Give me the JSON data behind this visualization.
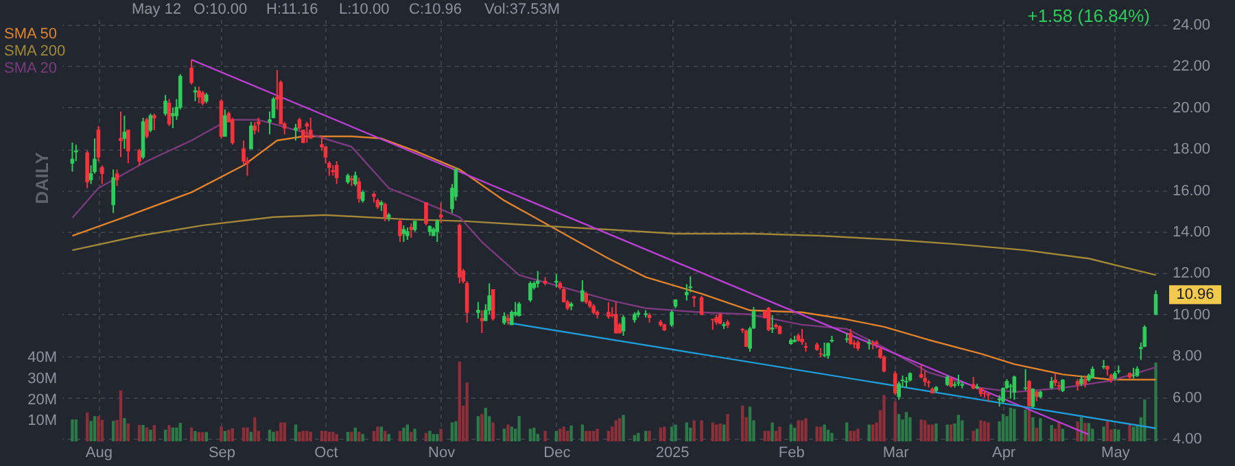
{
  "chart_data": {
    "type": "candlestick",
    "x": [
      "2024-07-25",
      "2024-07-26",
      "2024-07-29",
      "2024-07-30",
      "2024-07-31",
      "2024-08-01",
      "2024-08-02",
      "2024-08-05",
      "2024-08-06",
      "2024-08-07",
      "2024-08-08",
      "2024-08-09",
      "2024-08-12",
      "2024-08-13",
      "2024-08-14",
      "2024-08-15",
      "2024-08-16",
      "2024-08-19",
      "2024-08-20",
      "2024-08-21",
      "2024-08-22",
      "2024-08-23",
      "2024-08-26",
      "2024-08-27",
      "2024-08-28",
      "2024-08-29",
      "2024-08-30",
      "2024-09-03",
      "2024-09-04",
      "2024-09-05",
      "2024-09-06",
      "2024-09-09",
      "2024-09-10",
      "2024-09-11",
      "2024-09-12",
      "2024-09-13",
      "2024-09-16",
      "2024-09-17",
      "2024-09-18",
      "2024-09-19",
      "2024-09-20",
      "2024-09-23",
      "2024-09-24",
      "2024-09-25",
      "2024-09-26",
      "2024-09-27",
      "2024-09-30",
      "2024-10-01",
      "2024-10-02",
      "2024-10-03",
      "2024-10-04",
      "2024-10-07",
      "2024-10-08",
      "2024-10-09",
      "2024-10-10",
      "2024-10-11",
      "2024-10-14",
      "2024-10-15",
      "2024-10-16",
      "2024-10-17",
      "2024-10-18",
      "2024-10-21",
      "2024-10-22",
      "2024-10-23",
      "2024-10-24",
      "2024-10-25",
      "2024-10-28",
      "2024-10-29",
      "2024-10-30",
      "2024-10-31",
      "2024-11-01",
      "2024-11-04",
      "2024-11-05",
      "2024-11-06",
      "2024-11-07",
      "2024-11-08",
      "2024-11-11",
      "2024-11-12",
      "2024-11-13",
      "2024-11-14",
      "2024-11-15",
      "2024-11-18",
      "2024-11-19",
      "2024-11-20",
      "2024-11-21",
      "2024-11-22",
      "2024-11-25",
      "2024-11-26",
      "2024-11-27",
      "2024-11-29",
      "2024-12-02",
      "2024-12-03",
      "2024-12-04",
      "2024-12-05",
      "2024-12-06",
      "2024-12-09",
      "2024-12-10",
      "2024-12-11",
      "2024-12-12",
      "2024-12-13",
      "2024-12-16",
      "2024-12-17",
      "2024-12-18",
      "2024-12-19",
      "2024-12-20",
      "2024-12-23",
      "2024-12-24",
      "2024-12-26",
      "2024-12-27",
      "2024-12-30",
      "2024-12-31",
      "2025-01-02",
      "2025-01-03",
      "2025-01-06",
      "2025-01-07",
      "2025-01-08",
      "2025-01-10",
      "2025-01-13",
      "2025-01-14",
      "2025-01-15",
      "2025-01-16",
      "2025-01-17",
      "2025-01-21",
      "2025-01-22",
      "2025-01-23",
      "2025-01-24",
      "2025-01-27",
      "2025-01-28",
      "2025-01-29",
      "2025-01-30",
      "2025-01-31",
      "2025-02-03",
      "2025-02-04",
      "2025-02-05",
      "2025-02-06",
      "2025-02-07",
      "2025-02-10",
      "2025-02-11",
      "2025-02-12",
      "2025-02-13",
      "2025-02-14",
      "2025-02-18",
      "2025-02-19",
      "2025-02-20",
      "2025-02-21",
      "2025-02-24",
      "2025-02-25",
      "2025-02-26",
      "2025-02-27",
      "2025-02-28",
      "2025-03-03",
      "2025-03-04",
      "2025-03-05",
      "2025-03-06",
      "2025-03-07",
      "2025-03-10",
      "2025-03-11",
      "2025-03-12",
      "2025-03-13",
      "2025-03-14",
      "2025-03-17",
      "2025-03-18",
      "2025-03-19",
      "2025-03-20",
      "2025-03-21",
      "2025-03-24",
      "2025-03-25",
      "2025-03-26",
      "2025-03-27",
      "2025-03-28",
      "2025-03-31",
      "2025-04-01",
      "2025-04-02",
      "2025-04-03",
      "2025-04-04",
      "2025-04-07",
      "2025-04-08",
      "2025-04-09",
      "2025-04-10",
      "2025-04-11",
      "2025-04-14",
      "2025-04-15",
      "2025-04-16",
      "2025-04-17",
      "2025-04-21",
      "2025-04-22",
      "2025-04-23",
      "2025-04-24",
      "2025-04-25",
      "2025-04-28",
      "2025-04-29",
      "2025-04-30",
      "2025-05-01",
      "2025-05-02",
      "2025-05-05",
      "2025-05-06",
      "2025-05-07",
      "2025-05-08",
      "2025-05-09",
      "2025-05-12"
    ],
    "ohlc": [
      [
        17.3,
        18.3,
        16.9,
        17.5
      ],
      [
        17.85,
        18.2,
        17.4,
        17.9
      ],
      [
        17.8,
        17.9,
        16.1,
        16.4
      ],
      [
        16.5,
        17.2,
        16.3,
        16.8
      ],
      [
        16.9,
        18.5,
        16.8,
        17.5
      ],
      [
        18.9,
        19.1,
        17.4,
        17.6
      ],
      [
        17.1,
        17.2,
        16.3,
        16.8
      ],
      [
        15.3,
        17.0,
        14.9,
        16.6
      ],
      [
        16.8,
        17.0,
        16.2,
        16.5
      ],
      [
        18.5,
        19.8,
        17.6,
        18.4
      ],
      [
        18.5,
        19.6,
        18.0,
        18.8
      ],
      [
        18.9,
        18.9,
        17.3,
        17.9
      ],
      [
        17.9,
        18.0,
        17.2,
        17.4
      ],
      [
        17.6,
        19.5,
        17.5,
        19.3
      ],
      [
        19.4,
        19.5,
        18.5,
        18.6
      ],
      [
        18.9,
        19.7,
        18.8,
        19.6
      ],
      [
        19.6,
        19.7,
        18.9,
        19.5
      ],
      [
        19.7,
        20.6,
        19.6,
        20.3
      ],
      [
        20.2,
        20.4,
        19.1,
        19.2
      ],
      [
        19.6,
        20.0,
        19.0,
        19.7
      ],
      [
        19.6,
        20.4,
        19.4,
        20.0
      ],
      [
        20.0,
        21.6,
        19.9,
        21.5
      ],
      [
        21.9,
        22.3,
        21.1,
        21.2
      ],
      [
        20.75,
        21.0,
        20.3,
        20.8
      ],
      [
        20.8,
        21.0,
        20.2,
        20.5
      ],
      [
        20.7,
        20.8,
        20.1,
        20.2
      ],
      [
        20.3,
        20.7,
        20.2,
        20.6
      ],
      [
        20.3,
        20.4,
        18.5,
        18.6
      ],
      [
        18.6,
        19.9,
        18.6,
        19.6
      ],
      [
        19.7,
        19.8,
        19.3,
        19.3
      ],
      [
        19.4,
        19.5,
        18.2,
        18.3
      ],
      [
        18.0,
        18.4,
        17.2,
        17.4
      ],
      [
        17.4,
        17.6,
        16.7,
        17.3
      ],
      [
        18.0,
        19.3,
        18.0,
        19.1
      ],
      [
        19.1,
        19.3,
        18.7,
        18.9
      ],
      [
        19.3,
        19.5,
        18.8,
        19.2
      ],
      [
        19.3,
        19.8,
        18.7,
        19.4
      ],
      [
        19.5,
        20.5,
        19.5,
        20.4
      ],
      [
        20.5,
        21.8,
        19.9,
        20.4
      ],
      [
        21.2,
        21.3,
        19.2,
        19.2
      ],
      [
        19.2,
        19.3,
        18.7,
        19.0
      ],
      [
        18.9,
        19.2,
        18.4,
        19.0
      ],
      [
        19.4,
        19.5,
        18.9,
        19.0
      ],
      [
        18.9,
        18.9,
        18.3,
        18.3
      ],
      [
        19.2,
        19.3,
        18.3,
        19.1
      ],
      [
        18.9,
        19.5,
        18.5,
        18.5
      ],
      [
        18.2,
        18.6,
        17.9,
        18.1
      ],
      [
        18.1,
        18.1,
        17.3,
        17.6
      ],
      [
        17.3,
        17.4,
        16.7,
        17.1
      ],
      [
        16.95,
        17.2,
        16.7,
        16.9
      ],
      [
        17.2,
        17.4,
        16.3,
        16.6
      ],
      [
        16.4,
        16.8,
        16.3,
        16.7
      ],
      [
        16.55,
        16.7,
        16.2,
        16.5
      ],
      [
        16.3,
        16.9,
        16.2,
        16.7
      ],
      [
        16.4,
        16.6,
        15.4,
        15.6
      ],
      [
        15.5,
        16.0,
        15.4,
        15.9
      ],
      [
        15.8,
        15.9,
        15.4,
        15.7
      ],
      [
        15.5,
        15.6,
        15.1,
        15.2
      ],
      [
        15.3,
        15.5,
        15.0,
        15.4
      ],
      [
        15.3,
        15.4,
        14.5,
        14.7
      ],
      [
        14.7,
        14.9,
        14.5,
        14.8
      ],
      [
        14.5,
        14.6,
        13.5,
        13.8
      ],
      [
        13.9,
        14.3,
        13.5,
        14.1
      ],
      [
        13.8,
        14.2,
        13.6,
        14.0
      ],
      [
        14.2,
        14.4,
        13.7,
        14.1
      ],
      [
        14.1,
        14.5,
        14.0,
        14.5
      ],
      [
        15.4,
        15.4,
        14.3,
        14.4
      ],
      [
        14.0,
        14.3,
        13.8,
        14.25
      ],
      [
        13.8,
        14.2,
        13.8,
        14.1
      ],
      [
        14.0,
        14.6,
        13.5,
        14.5
      ],
      [
        14.8,
        15.4,
        14.4,
        14.7
      ],
      [
        15.1,
        16.3,
        14.9,
        16.1
      ],
      [
        15.7,
        17.1,
        15.5,
        17.0
      ],
      [
        14.3,
        14.4,
        11.5,
        11.8
      ],
      [
        12.1,
        12.2,
        11.5,
        11.6
      ],
      [
        11.5,
        11.6,
        9.6,
        10.1
      ],
      [
        10.1,
        10.6,
        9.8,
        10.2
      ],
      [
        9.8,
        10.2,
        9.1,
        9.7
      ],
      [
        9.7,
        10.5,
        9.7,
        10.2
      ],
      [
        10.2,
        11.5,
        10.0,
        10.9
      ],
      [
        11.2,
        11.2,
        9.7,
        9.8
      ],
      [
        9.6,
        10.1,
        9.5,
        9.9
      ],
      [
        9.8,
        10.0,
        9.5,
        9.7
      ],
      [
        9.5,
        10.2,
        9.5,
        10.1
      ],
      [
        10.0,
        10.6,
        9.9,
        10.1
      ],
      [
        9.95,
        10.6,
        9.9,
        10.5
      ],
      [
        10.7,
        11.6,
        10.6,
        11.5
      ],
      [
        11.3,
        11.6,
        11.2,
        11.5
      ],
      [
        11.5,
        12.1,
        11.3,
        11.6
      ],
      [
        11.6,
        11.8,
        11.4,
        11.5
      ],
      [
        11.55,
        11.95,
        11.3,
        11.6
      ],
      [
        11.5,
        11.6,
        11.2,
        11.3
      ],
      [
        11.2,
        11.3,
        10.6,
        10.6
      ],
      [
        10.6,
        10.7,
        10.2,
        10.3
      ],
      [
        10.4,
        10.6,
        10.2,
        10.5
      ],
      [
        10.65,
        11.65,
        10.6,
        11.15
      ],
      [
        11.0,
        11.1,
        10.5,
        10.6
      ],
      [
        10.6,
        10.7,
        10.3,
        10.4
      ],
      [
        10.4,
        10.5,
        10.0,
        10.1
      ],
      [
        10.1,
        10.2,
        9.8,
        10.0
      ],
      [
        10.1,
        10.6,
        9.8,
        9.9
      ],
      [
        9.98,
        10.35,
        9.85,
        9.95
      ],
      [
        10.0,
        10.6,
        9.1,
        9.1
      ],
      [
        9.5,
        9.6,
        9.1,
        9.1
      ],
      [
        9.2,
        9.96,
        8.97,
        9.85
      ],
      [
        9.74,
        10.1,
        9.6,
        10.0
      ],
      [
        10.0,
        10.2,
        9.85,
        10.07
      ],
      [
        10.0,
        10.2,
        9.85,
        10.03
      ],
      [
        9.96,
        10.07,
        9.6,
        9.85
      ],
      [
        9.63,
        9.74,
        9.4,
        9.5
      ],
      [
        9.5,
        9.55,
        9.2,
        9.25
      ],
      [
        9.5,
        10.2,
        9.4,
        10.1
      ],
      [
        10.4,
        10.73,
        10.3,
        10.7
      ],
      [
        10.95,
        11.46,
        10.67,
        11.06
      ],
      [
        11.3,
        11.84,
        11.07,
        11.33
      ],
      [
        10.85,
        10.9,
        10.36,
        10.8
      ],
      [
        10.8,
        10.9,
        9.96,
        10.0
      ],
      [
        9.76,
        9.78,
        9.26,
        9.74
      ],
      [
        9.85,
        10.0,
        9.5,
        9.63
      ],
      [
        10.0,
        10.07,
        9.52,
        9.57
      ],
      [
        9.46,
        9.63,
        9.3,
        9.5
      ],
      [
        9.63,
        9.74,
        9.34,
        9.48
      ],
      [
        9.28,
        9.34,
        9.1,
        9.25
      ],
      [
        9.2,
        9.26,
        8.42,
        8.46
      ],
      [
        8.37,
        9.41,
        8.2,
        9.3
      ],
      [
        9.34,
        10.36,
        9.3,
        10.14
      ],
      [
        10.14,
        10.18,
        9.8,
        9.85
      ],
      [
        10.3,
        10.36,
        9.19,
        9.26
      ],
      [
        9.3,
        9.96,
        9.1,
        9.34
      ],
      [
        9.48,
        9.57,
        9.3,
        9.41
      ],
      [
        9.41,
        9.48,
        9.04,
        9.08
      ],
      [
        8.59,
        8.86,
        8.53,
        8.75
      ],
      [
        8.7,
        8.97,
        8.64,
        8.75
      ],
      [
        8.97,
        9.08,
        8.68,
        8.75
      ],
      [
        8.8,
        9.3,
        8.53,
        8.68
      ],
      [
        8.44,
        8.64,
        8.2,
        8.42
      ],
      [
        8.53,
        8.64,
        8.24,
        8.31
      ],
      [
        8.1,
        8.37,
        7.93,
        8.08
      ],
      [
        8.02,
        8.64,
        7.93,
        8.04
      ],
      [
        8.02,
        8.64,
        7.86,
        8.6
      ],
      [
        8.72,
        8.97,
        8.64,
        8.75
      ],
      [
        8.8,
        9.08,
        8.64,
        8.82
      ],
      [
        9.08,
        9.3,
        8.53,
        8.6
      ],
      [
        8.6,
        8.75,
        8.37,
        8.57
      ],
      [
        8.64,
        8.75,
        8.24,
        8.37
      ],
      [
        8.6,
        8.8,
        8.31,
        8.64
      ],
      [
        8.6,
        8.75,
        8.31,
        8.57
      ],
      [
        8.64,
        8.75,
        8.37,
        8.6
      ],
      [
        8.31,
        8.42,
        7.86,
        7.93
      ],
      [
        7.93,
        8.02,
        7.2,
        7.27
      ],
      [
        7.14,
        7.27,
        6.1,
        6.21
      ],
      [
        6.03,
        6.76,
        5.88,
        6.65
      ],
      [
        6.8,
        7.05,
        6.47,
        6.83
      ],
      [
        6.74,
        6.98,
        6.47,
        6.76
      ],
      [
        6.83,
        7.2,
        6.76,
        7.14
      ],
      [
        7.09,
        7.58,
        6.91,
        6.98
      ],
      [
        6.91,
        7.27,
        6.54,
        6.76
      ],
      [
        6.72,
        6.83,
        6.47,
        6.7
      ],
      [
        6.39,
        6.47,
        6.17,
        6.21
      ],
      [
        6.32,
        6.54,
        6.25,
        6.47
      ],
      [
        6.61,
        7.05,
        6.54,
        6.98
      ],
      [
        6.91,
        6.98,
        6.47,
        6.54
      ],
      [
        6.58,
        6.76,
        6.47,
        6.61
      ],
      [
        6.68,
        7.09,
        6.54,
        6.7
      ],
      [
        6.58,
        6.76,
        6.43,
        6.61
      ],
      [
        6.61,
        6.98,
        6.39,
        6.43
      ],
      [
        6.47,
        6.65,
        6.39,
        6.5
      ],
      [
        6.43,
        6.47,
        6.03,
        6.17
      ],
      [
        6.18,
        6.32,
        5.99,
        6.17
      ],
      [
        6.12,
        6.21,
        5.81,
        6.1
      ],
      [
        5.88,
        6.1,
        5.55,
        5.92
      ],
      [
        5.81,
        6.47,
        5.72,
        6.43
      ],
      [
        6.47,
        6.87,
        6.39,
        6.76
      ],
      [
        6.52,
        6.65,
        5.94,
        6.54
      ],
      [
        6.25,
        7.05,
        5.88,
        6.98
      ],
      [
        6.43,
        7.36,
        6.32,
        6.45
      ],
      [
        6.76,
        6.83,
        5.55,
        5.59
      ],
      [
        5.55,
        6.43,
        5.5,
        6.39
      ],
      [
        6.25,
        6.32,
        5.81,
        6.03
      ],
      [
        6.03,
        6.32,
        5.94,
        6.25
      ],
      [
        6.47,
        6.98,
        6.39,
        6.76
      ],
      [
        6.83,
        7.14,
        6.54,
        6.7
      ],
      [
        6.56,
        6.76,
        6.32,
        6.54
      ],
      [
        6.32,
        6.87,
        6.25,
        6.83
      ],
      [
        6.76,
        6.87,
        6.32,
        6.61
      ],
      [
        6.65,
        7.05,
        6.54,
        6.87
      ],
      [
        6.87,
        7.05,
        6.47,
        6.65
      ],
      [
        6.83,
        7.14,
        6.76,
        7.05
      ],
      [
        6.98,
        7.49,
        6.91,
        7.36
      ],
      [
        7.47,
        7.8,
        7.36,
        7.49
      ],
      [
        7.49,
        7.53,
        7.05,
        7.36
      ],
      [
        7.05,
        7.14,
        6.7,
        6.83
      ],
      [
        6.91,
        7.27,
        6.83,
        7.14
      ],
      [
        7.25,
        7.53,
        7.14,
        7.27
      ],
      [
        7.14,
        7.2,
        6.87,
        6.98
      ],
      [
        7.04,
        7.42,
        6.91,
        7.05
      ],
      [
        7.05,
        7.49,
        6.98,
        7.36
      ],
      [
        8.35,
        8.64,
        7.8,
        8.4
      ],
      [
        8.46,
        9.48,
        8.42,
        9.38
      ],
      [
        10.0,
        11.16,
        10.0,
        10.96
      ]
    ],
    "colors": [
      "#2ecc5a",
      "#2ecc5a",
      "#f4333d",
      "#2ecc5a",
      "#2ecc5a",
      "#f4333d",
      "#f4333d",
      "#2ecc5a",
      "#f4333d",
      "#f4333d",
      "#2ecc5a",
      "#f4333d",
      "#f4333d",
      "#2ecc5a",
      "#f4333d",
      "#2ecc5a",
      "#f4333d",
      "#2ecc5a",
      "#f4333d",
      "#2ecc5a",
      "#2ecc5a",
      "#2ecc5a",
      "#f4333d",
      "#2ecc5a",
      "#f4333d",
      "#f4333d",
      "#2ecc5a",
      "#f4333d",
      "#2ecc5a",
      "#f4333d",
      "#f4333d",
      "#f4333d",
      "#f4333d",
      "#2ecc5a",
      "#f4333d",
      "#f4333d",
      "#2ecc5a",
      "#2ecc5a",
      "#f4333d",
      "#f4333d",
      "#f4333d",
      "#2ecc5a",
      "#f4333d",
      "#f4333d",
      "#f4333d",
      "#f4333d",
      "#f4333d",
      "#f4333d",
      "#f4333d",
      "#f4333d",
      "#f4333d",
      "#2ecc5a",
      "#f4333d",
      "#2ecc5a",
      "#f4333d",
      "#2ecc5a",
      "#f4333d",
      "#f4333d",
      "#2ecc5a",
      "#f4333d",
      "#2ecc5a",
      "#f4333d",
      "#2ecc5a",
      "#2ecc5a",
      "#f4333d",
      "#2ecc5a",
      "#f4333d",
      "#2ecc5a",
      "#2ecc5a",
      "#2ecc5a",
      "#f4333d",
      "#2ecc5a",
      "#2ecc5a",
      "#f4333d",
      "#f4333d",
      "#f4333d",
      "#2ecc5a",
      "#f4333d",
      "#2ecc5a",
      "#2ecc5a",
      "#f4333d",
      "#2ecc5a",
      "#f4333d",
      "#2ecc5a",
      "#2ecc5a",
      "#2ecc5a",
      "#2ecc5a",
      "#2ecc5a",
      "#2ecc5a",
      "#f4333d",
      "#2ecc5a",
      "#f4333d",
      "#f4333d",
      "#f4333d",
      "#2ecc5a",
      "#2ecc5a",
      "#f4333d",
      "#f4333d",
      "#f4333d",
      "#f4333d",
      "#f4333d",
      "#f4333d",
      "#f4333d",
      "#f4333d",
      "#2ecc5a",
      "#2ecc5a",
      "#2ecc5a",
      "#2ecc5a",
      "#f4333d",
      "#f4333d",
      "#f4333d",
      "#2ecc5a",
      "#2ecc5a",
      "#2ecc5a",
      "#2ecc5a",
      "#f4333d",
      "#f4333d",
      "#f4333d",
      "#f4333d",
      "#f4333d",
      "#2ecc5a",
      "#f4333d",
      "#f4333d",
      "#f4333d",
      "#2ecc5a",
      "#2ecc5a",
      "#f4333d",
      "#f4333d",
      "#2ecc5a",
      "#f4333d",
      "#f4333d",
      "#2ecc5a",
      "#2ecc5a",
      "#f4333d",
      "#f4333d",
      "#f4333d",
      "#f4333d",
      "#f4333d",
      "#2ecc5a",
      "#2ecc5a",
      "#2ecc5a",
      "#2ecc5a",
      "#f4333d",
      "#f4333d",
      "#f4333d",
      "#2ecc5a",
      "#f4333d",
      "#f4333d",
      "#f4333d",
      "#f4333d",
      "#f4333d",
      "#2ecc5a",
      "#2ecc5a",
      "#2ecc5a",
      "#2ecc5a",
      "#f4333d",
      "#f4333d",
      "#f4333d",
      "#f4333d",
      "#2ecc5a",
      "#2ecc5a",
      "#f4333d",
      "#2ecc5a",
      "#2ecc5a",
      "#2ecc5a",
      "#f4333d",
      "#2ecc5a",
      "#f4333d",
      "#f4333d",
      "#f4333d",
      "#2ecc5a",
      "#2ecc5a",
      "#2ecc5a",
      "#2ecc5a",
      "#2ecc5a",
      "#2ecc5a",
      "#f4333d",
      "#2ecc5a",
      "#f4333d",
      "#2ecc5a",
      "#2ecc5a",
      "#f4333d",
      "#f4333d",
      "#2ecc5a",
      "#f4333d",
      "#2ecc5a",
      "#f4333d",
      "#2ecc5a",
      "#2ecc5a",
      "#2ecc5a",
      "#f4333d",
      "#f4333d",
      "#2ecc5a",
      "#2ecc5a",
      "#f4333d",
      "#2ecc5a",
      "#2ecc5a",
      "#2ecc5a",
      "#2ecc5a",
      "#2ecc5a"
    ],
    "series": [
      {
        "type": "bar",
        "axis": "y2",
        "values": [
          10.4,
          10.4,
          13.7,
          9.7,
          12.0,
          12.0,
          10.2,
          9.7,
          10.2,
          24.3,
          11.1,
          8.5,
          7.8,
          7.8,
          6.6,
          5.5,
          7.7,
          5.5,
          7.7,
          6.6,
          6.6,
          8.8,
          6.6,
          4.9,
          4.4,
          4.4,
          4.4,
          7.1,
          4.9,
          5.5,
          6.2,
          6.6,
          6.6,
          4.5,
          11.5,
          5,
          5.5,
          4.5,
          5,
          9,
          9,
          8,
          4.5,
          5,
          5,
          4.5,
          5,
          5,
          4.5,
          4.5,
          3.5,
          4.5,
          4.5,
          6.5,
          4.5,
          3.5,
          5,
          7,
          7,
          5,
          3.5,
          5,
          6.5,
          8,
          4.5,
          6,
          4,
          5,
          3.5,
          3.5,
          6,
          9,
          9.5,
          38,
          17,
          28,
          12,
          13,
          16,
          12,
          9,
          6,
          8,
          7,
          6,
          12,
          6,
          6.5,
          3.5,
          5,
          5,
          6,
          7,
          5,
          7.5,
          8,
          5,
          5,
          5,
          6,
          5,
          7,
          10,
          11,
          12.6,
          3,
          4,
          5,
          5,
          6.5,
          7,
          7,
          8,
          9,
          6.5,
          10,
          10,
          9,
          8,
          8.5,
          8,
          13,
          17,
          11.5,
          16.5,
          10,
          5,
          5,
          9,
          5,
          7,
          8,
          6.5,
          10,
          10,
          11,
          7,
          7,
          8,
          5.5,
          4,
          9,
          5,
          5,
          6,
          8,
          8,
          9,
          14.8,
          22,
          19,
          13,
          10.4,
          14,
          11.5,
          10.4,
          10,
          8,
          8,
          8.5,
          8,
          8,
          8.5,
          12.6,
          10,
          5,
          6,
          10,
          9.5,
          9,
          9.5,
          13,
          12,
          16,
          15.5,
          15,
          14.8,
          11.5,
          6.5,
          11,
          7.8,
          6,
          9.5,
          6,
          9.5,
          11.5,
          8.7,
          8.7,
          6,
          7,
          9.5,
          5.6,
          6,
          5.6,
          8,
          7,
          8,
          11.5,
          20,
          37.5
        ],
        "colors": [
          "#2b7a48",
          "#2b7a48",
          "#8c2f38",
          "#2b7a48",
          "#2b7a48",
          "#8c2f38",
          "#8c2f38",
          "#2b7a48",
          "#8c2f38",
          "#8c2f38",
          "#2b7a48",
          "#8c2f38",
          "#8c2f38",
          "#2b7a48",
          "#8c2f38",
          "#2b7a48",
          "#8c2f38",
          "#2b7a48",
          "#8c2f38",
          "#2b7a48",
          "#2b7a48",
          "#2b7a48",
          "#8c2f38",
          "#2b7a48",
          "#8c2f38",
          "#8c2f38",
          "#2b7a48",
          "#8c2f38",
          "#2b7a48",
          "#8c2f38",
          "#8c2f38",
          "#8c2f38",
          "#8c2f38",
          "#2b7a48",
          "#8c2f38",
          "#8c2f38",
          "#2b7a48",
          "#2b7a48",
          "#8c2f38",
          "#8c2f38",
          "#8c2f38",
          "#2b7a48",
          "#8c2f38",
          "#8c2f38",
          "#8c2f38",
          "#8c2f38",
          "#8c2f38",
          "#8c2f38",
          "#8c2f38",
          "#8c2f38",
          "#8c2f38",
          "#2b7a48",
          "#8c2f38",
          "#2b7a48",
          "#8c2f38",
          "#2b7a48",
          "#8c2f38",
          "#8c2f38",
          "#2b7a48",
          "#8c2f38",
          "#2b7a48",
          "#8c2f38",
          "#2b7a48",
          "#2b7a48",
          "#8c2f38",
          "#2b7a48",
          "#8c2f38",
          "#2b7a48",
          "#2b7a48",
          "#2b7a48",
          "#8c2f38",
          "#2b7a48",
          "#2b7a48",
          "#8c2f38",
          "#8c2f38",
          "#8c2f38",
          "#2b7a48",
          "#8c2f38",
          "#2b7a48",
          "#2b7a48",
          "#8c2f38",
          "#2b7a48",
          "#8c2f38",
          "#2b7a48",
          "#2b7a48",
          "#2b7a48",
          "#2b7a48",
          "#2b7a48",
          "#2b7a48",
          "#8c2f38",
          "#2b7a48",
          "#8c2f38",
          "#8c2f38",
          "#8c2f38",
          "#2b7a48",
          "#2b7a48",
          "#8c2f38",
          "#8c2f38",
          "#8c2f38",
          "#8c2f38",
          "#8c2f38",
          "#8c2f38",
          "#8c2f38",
          "#8c2f38",
          "#2b7a48",
          "#2b7a48",
          "#2b7a48",
          "#2b7a48",
          "#8c2f38",
          "#8c2f38",
          "#8c2f38",
          "#2b7a48",
          "#2b7a48",
          "#2b7a48",
          "#2b7a48",
          "#8c2f38",
          "#8c2f38",
          "#8c2f38",
          "#8c2f38",
          "#8c2f38",
          "#2b7a48",
          "#8c2f38",
          "#8c2f38",
          "#8c2f38",
          "#2b7a48",
          "#2b7a48",
          "#8c2f38",
          "#8c2f38",
          "#2b7a48",
          "#8c2f38",
          "#8c2f38",
          "#2b7a48",
          "#2b7a48",
          "#8c2f38",
          "#8c2f38",
          "#8c2f38",
          "#8c2f38",
          "#8c2f38",
          "#2b7a48",
          "#2b7a48",
          "#2b7a48",
          "#2b7a48",
          "#8c2f38",
          "#8c2f38",
          "#8c2f38",
          "#2b7a48",
          "#8c2f38",
          "#8c2f38",
          "#8c2f38",
          "#8c2f38",
          "#8c2f38",
          "#2b7a48",
          "#2b7a48",
          "#2b7a48",
          "#2b7a48",
          "#8c2f38",
          "#8c2f38",
          "#8c2f38",
          "#8c2f38",
          "#2b7a48",
          "#2b7a48",
          "#8c2f38",
          "#2b7a48",
          "#2b7a48",
          "#2b7a48",
          "#8c2f38",
          "#2b7a48",
          "#8c2f38",
          "#8c2f38",
          "#8c2f38",
          "#2b7a48",
          "#2b7a48",
          "#2b7a48",
          "#2b7a48",
          "#2b7a48",
          "#2b7a48",
          "#8c2f38",
          "#2b7a48",
          "#8c2f38",
          "#2b7a48",
          "#2b7a48",
          "#8c2f38",
          "#8c2f38",
          "#2b7a48",
          "#8c2f38",
          "#2b7a48",
          "#8c2f38",
          "#2b7a48",
          "#2b7a48",
          "#2b7a48",
          "#8c2f38",
          "#8c2f38",
          "#2b7a48",
          "#2b7a48",
          "#8c2f38",
          "#2b7a48",
          "#2b7a48",
          "#2b7a48",
          "#2b7a48",
          "#2b7a48"
        ]
      },
      {
        "type": "line",
        "name": "SMA 50",
        "color": "#e0822b",
        "x": [
          "2024-07-25",
          "2024-08-08",
          "2024-08-26",
          "2024-09-09",
          "2024-09-18",
          "2024-09-25",
          "2024-10-08",
          "2024-10-16",
          "2024-10-25",
          "2024-11-06",
          "2024-11-18",
          "2024-12-02",
          "2024-12-16",
          "2024-12-26",
          "2025-01-10",
          "2025-01-23",
          "2025-02-06",
          "2025-02-18",
          "2025-02-28",
          "2025-03-12",
          "2025-03-26",
          "2025-04-04",
          "2025-04-17",
          "2025-04-30",
          "2025-05-12"
        ],
        "values": [
          13.8,
          14.7,
          15.9,
          17.2,
          18.4,
          18.6,
          18.6,
          18.5,
          17.9,
          17.0,
          15.5,
          14.1,
          12.7,
          11.8,
          11.0,
          10.2,
          10.1,
          9.76,
          9.4,
          8.77,
          8.1,
          7.6,
          7.1,
          6.85,
          6.85
        ]
      },
      {
        "type": "line",
        "name": "SMA 200",
        "color": "#a08838",
        "x": [
          "2024-07-25",
          "2024-08-12",
          "2024-08-29",
          "2024-09-17",
          "2024-10-01",
          "2024-10-22",
          "2024-11-08",
          "2024-11-26",
          "2024-12-16",
          "2025-01-03",
          "2025-01-24",
          "2025-02-11",
          "2025-03-03",
          "2025-03-19",
          "2025-04-07",
          "2025-04-24",
          "2025-05-12"
        ],
        "values": [
          13.1,
          13.8,
          14.3,
          14.7,
          14.8,
          14.6,
          14.5,
          14.3,
          14.1,
          13.9,
          13.9,
          13.8,
          13.6,
          13.4,
          13.1,
          12.7,
          11.9
        ]
      },
      {
        "type": "line",
        "name": "SMA 20",
        "color": "#7b3a7e",
        "x": [
          "2024-07-25",
          "2024-08-01",
          "2024-08-14",
          "2024-08-26",
          "2024-09-05",
          "2024-09-13",
          "2024-09-25",
          "2024-10-08",
          "2024-10-18",
          "2024-10-25",
          "2024-11-06",
          "2024-11-12",
          "2024-11-22",
          "2024-12-16",
          "2024-12-26",
          "2025-01-10",
          "2025-01-23",
          "2025-02-06",
          "2025-02-18",
          "2025-02-28",
          "2025-03-12",
          "2025-03-26",
          "2025-04-04",
          "2025-04-17",
          "2025-04-30",
          "2025-05-12"
        ],
        "values": [
          14.66,
          16.1,
          17.4,
          18.4,
          19.4,
          19.4,
          18.8,
          18.1,
          16.1,
          15.6,
          14.7,
          13.5,
          11.9,
          10.7,
          10.3,
          10.1,
          10.0,
          9.5,
          9.3,
          8.4,
          7.2,
          6.45,
          6.25,
          6.45,
          6.8,
          7.45
        ]
      },
      {
        "type": "line",
        "color": "#b83fd0",
        "x": [
          "2024-08-26",
          "2025-04-24"
        ],
        "values": [
          22.3,
          4.2
        ]
      },
      {
        "type": "line",
        "color": "#1f9bd6",
        "x": [
          "2024-11-19",
          "2025-05-12"
        ],
        "values": [
          9.6,
          4.5
        ]
      }
    ],
    "xticks": [
      {
        "value": "2024-08-01",
        "label": "Aug"
      },
      {
        "value": "2024-09-03",
        "label": "Sep"
      },
      {
        "value": "2024-10-01",
        "label": "Oct"
      },
      {
        "value": "2024-11-01",
        "label": "Nov"
      },
      {
        "value": "2024-12-02",
        "label": "Dec"
      },
      {
        "value": "2025-01-02",
        "label": "2025"
      },
      {
        "value": "2025-02-03",
        "label": "Feb"
      },
      {
        "value": "2025-03-03",
        "label": "Mar"
      },
      {
        "value": "2025-04-01",
        "label": "Apr"
      },
      {
        "value": "2025-05-01",
        "label": "May"
      }
    ],
    "xlim": [
      "2024-07-24",
      "2025-05-13"
    ],
    "ylim": [
      3.87,
      24.26
    ],
    "yticks": [
      {
        "value": 4,
        "label": "4.00"
      },
      {
        "value": 6,
        "label": "6.00"
      },
      {
        "value": 8,
        "label": "8.00"
      },
      {
        "value": 10,
        "label": "10.00"
      },
      {
        "value": 12,
        "label": "12.00"
      },
      {
        "value": 14,
        "label": "14.00"
      },
      {
        "value": 16,
        "label": "16.00"
      },
      {
        "value": 18,
        "label": "18.00"
      },
      {
        "value": 20,
        "label": "20.00"
      },
      {
        "value": 22,
        "label": "22.00"
      },
      {
        "value": 24,
        "label": "24.00"
      }
    ],
    "y2lim": [
      0,
      201
    ],
    "y2ticks": [
      {
        "value": 10,
        "label": "10M"
      },
      {
        "value": 20,
        "label": "20M"
      },
      {
        "value": 30,
        "label": "30M"
      },
      {
        "value": 40,
        "label": "40M"
      }
    ],
    "grid": true,
    "legend": "top left",
    "annotations": [
      "May 12",
      "O:10.00",
      "H:11.16",
      "L:10.00",
      "C:10.96",
      "Vol:37.53M",
      "+1.58 (16.84%)",
      "DAILY",
      "10.96"
    ]
  }
}
